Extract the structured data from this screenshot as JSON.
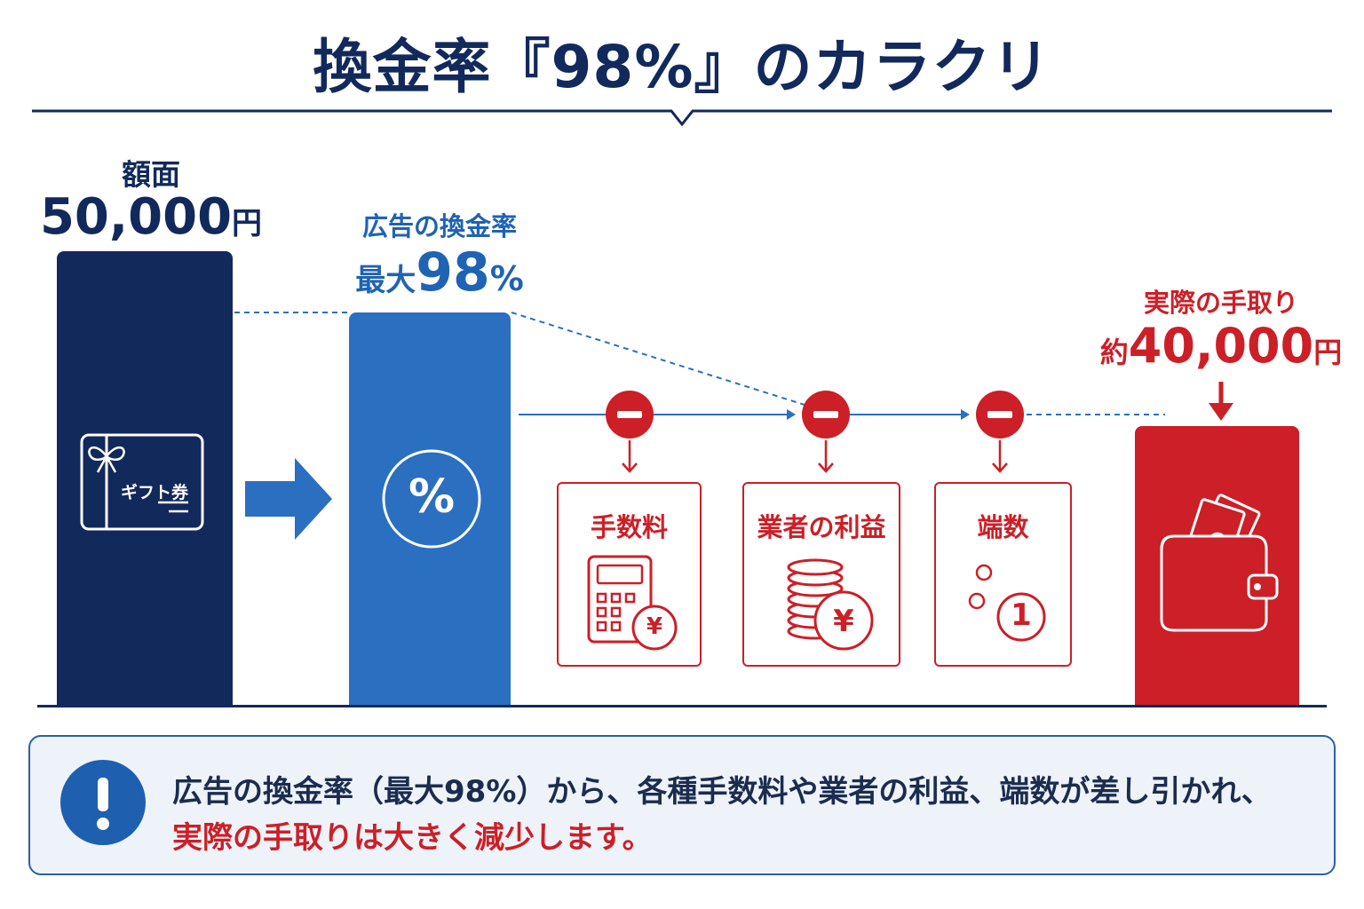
{
  "title": "換金率『98%』のカラクリ",
  "face_value": {
    "label": "額面",
    "amount": "50,000",
    "unit": "円"
  },
  "gift_card": {
    "label": "ギフト券"
  },
  "advertised_rate": {
    "label": "広告の換金率",
    "prefix": "最大",
    "value": "98",
    "unit": "%"
  },
  "percent_symbol": "%",
  "deductions": [
    {
      "label": "手数料",
      "icon": "calculator-icon"
    },
    {
      "label": "業者の利益",
      "icon": "coins-icon"
    },
    {
      "label": "端数",
      "icon": "small-change-icon"
    }
  ],
  "yen_symbol": "¥",
  "coin_number": "1",
  "actual": {
    "label": "実際の手取り",
    "prefix": "約",
    "amount": "40,000",
    "unit": "円"
  },
  "note": {
    "icon": "exclamation-icon",
    "line1": "広告の換金率（最大98%）から、各種手数料や業者の利益、端数が差し引かれ、",
    "line2": "実際の手取りは大きく減少します。"
  },
  "colors": {
    "navy": "#12295c",
    "blue": "#2b6fc0",
    "red": "#cc1f27",
    "note_bg": "#eef3fa"
  }
}
